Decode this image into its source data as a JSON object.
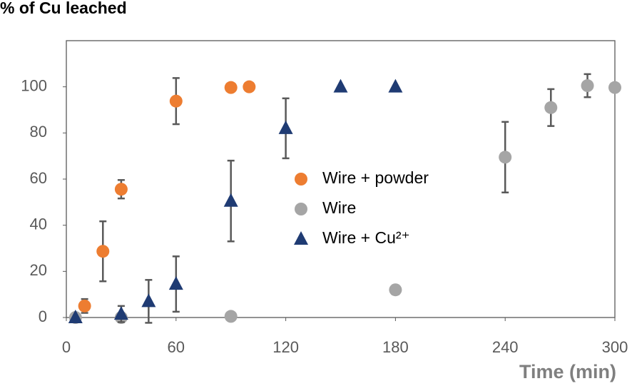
{
  "chart_data": {
    "type": "scatter",
    "ylabel": "% of Cu leached",
    "xlabel": "Time (min)",
    "xlim": [
      0,
      300
    ],
    "xticks": [
      0,
      60,
      120,
      180,
      240,
      300
    ],
    "ylim": [
      0,
      120
    ],
    "yticks": [
      0,
      20,
      40,
      60,
      80,
      100
    ],
    "series": [
      {
        "name": "Wire + powder",
        "color": "#ed7d31",
        "marker": "circle",
        "x": [
          10,
          20,
          30,
          60,
          90,
          100
        ],
        "values": [
          5,
          28.7,
          55.6,
          93.8,
          99.7,
          100
        ],
        "errors": [
          3,
          13,
          4,
          10,
          null,
          null
        ]
      },
      {
        "name": "Wire",
        "color": "#a5a5a5",
        "marker": "circle",
        "x": [
          5,
          30,
          90,
          180,
          240,
          265,
          285,
          300
        ],
        "values": [
          0,
          0,
          0.5,
          12,
          69.5,
          91,
          100.5,
          99.7
        ],
        "errors": [
          1.5,
          null,
          null,
          2,
          15.3,
          8,
          5,
          null
        ]
      },
      {
        "name": "Wire + Cu²⁺",
        "color": "#1f3b73",
        "marker": "triangle",
        "x": [
          5,
          30,
          45,
          60,
          90,
          120,
          150,
          180
        ],
        "values": [
          0,
          1.5,
          7,
          14.5,
          50.5,
          82,
          100,
          100
        ],
        "errors": [
          null,
          3.5,
          9.3,
          12,
          17.5,
          13,
          null,
          null
        ]
      }
    ]
  }
}
